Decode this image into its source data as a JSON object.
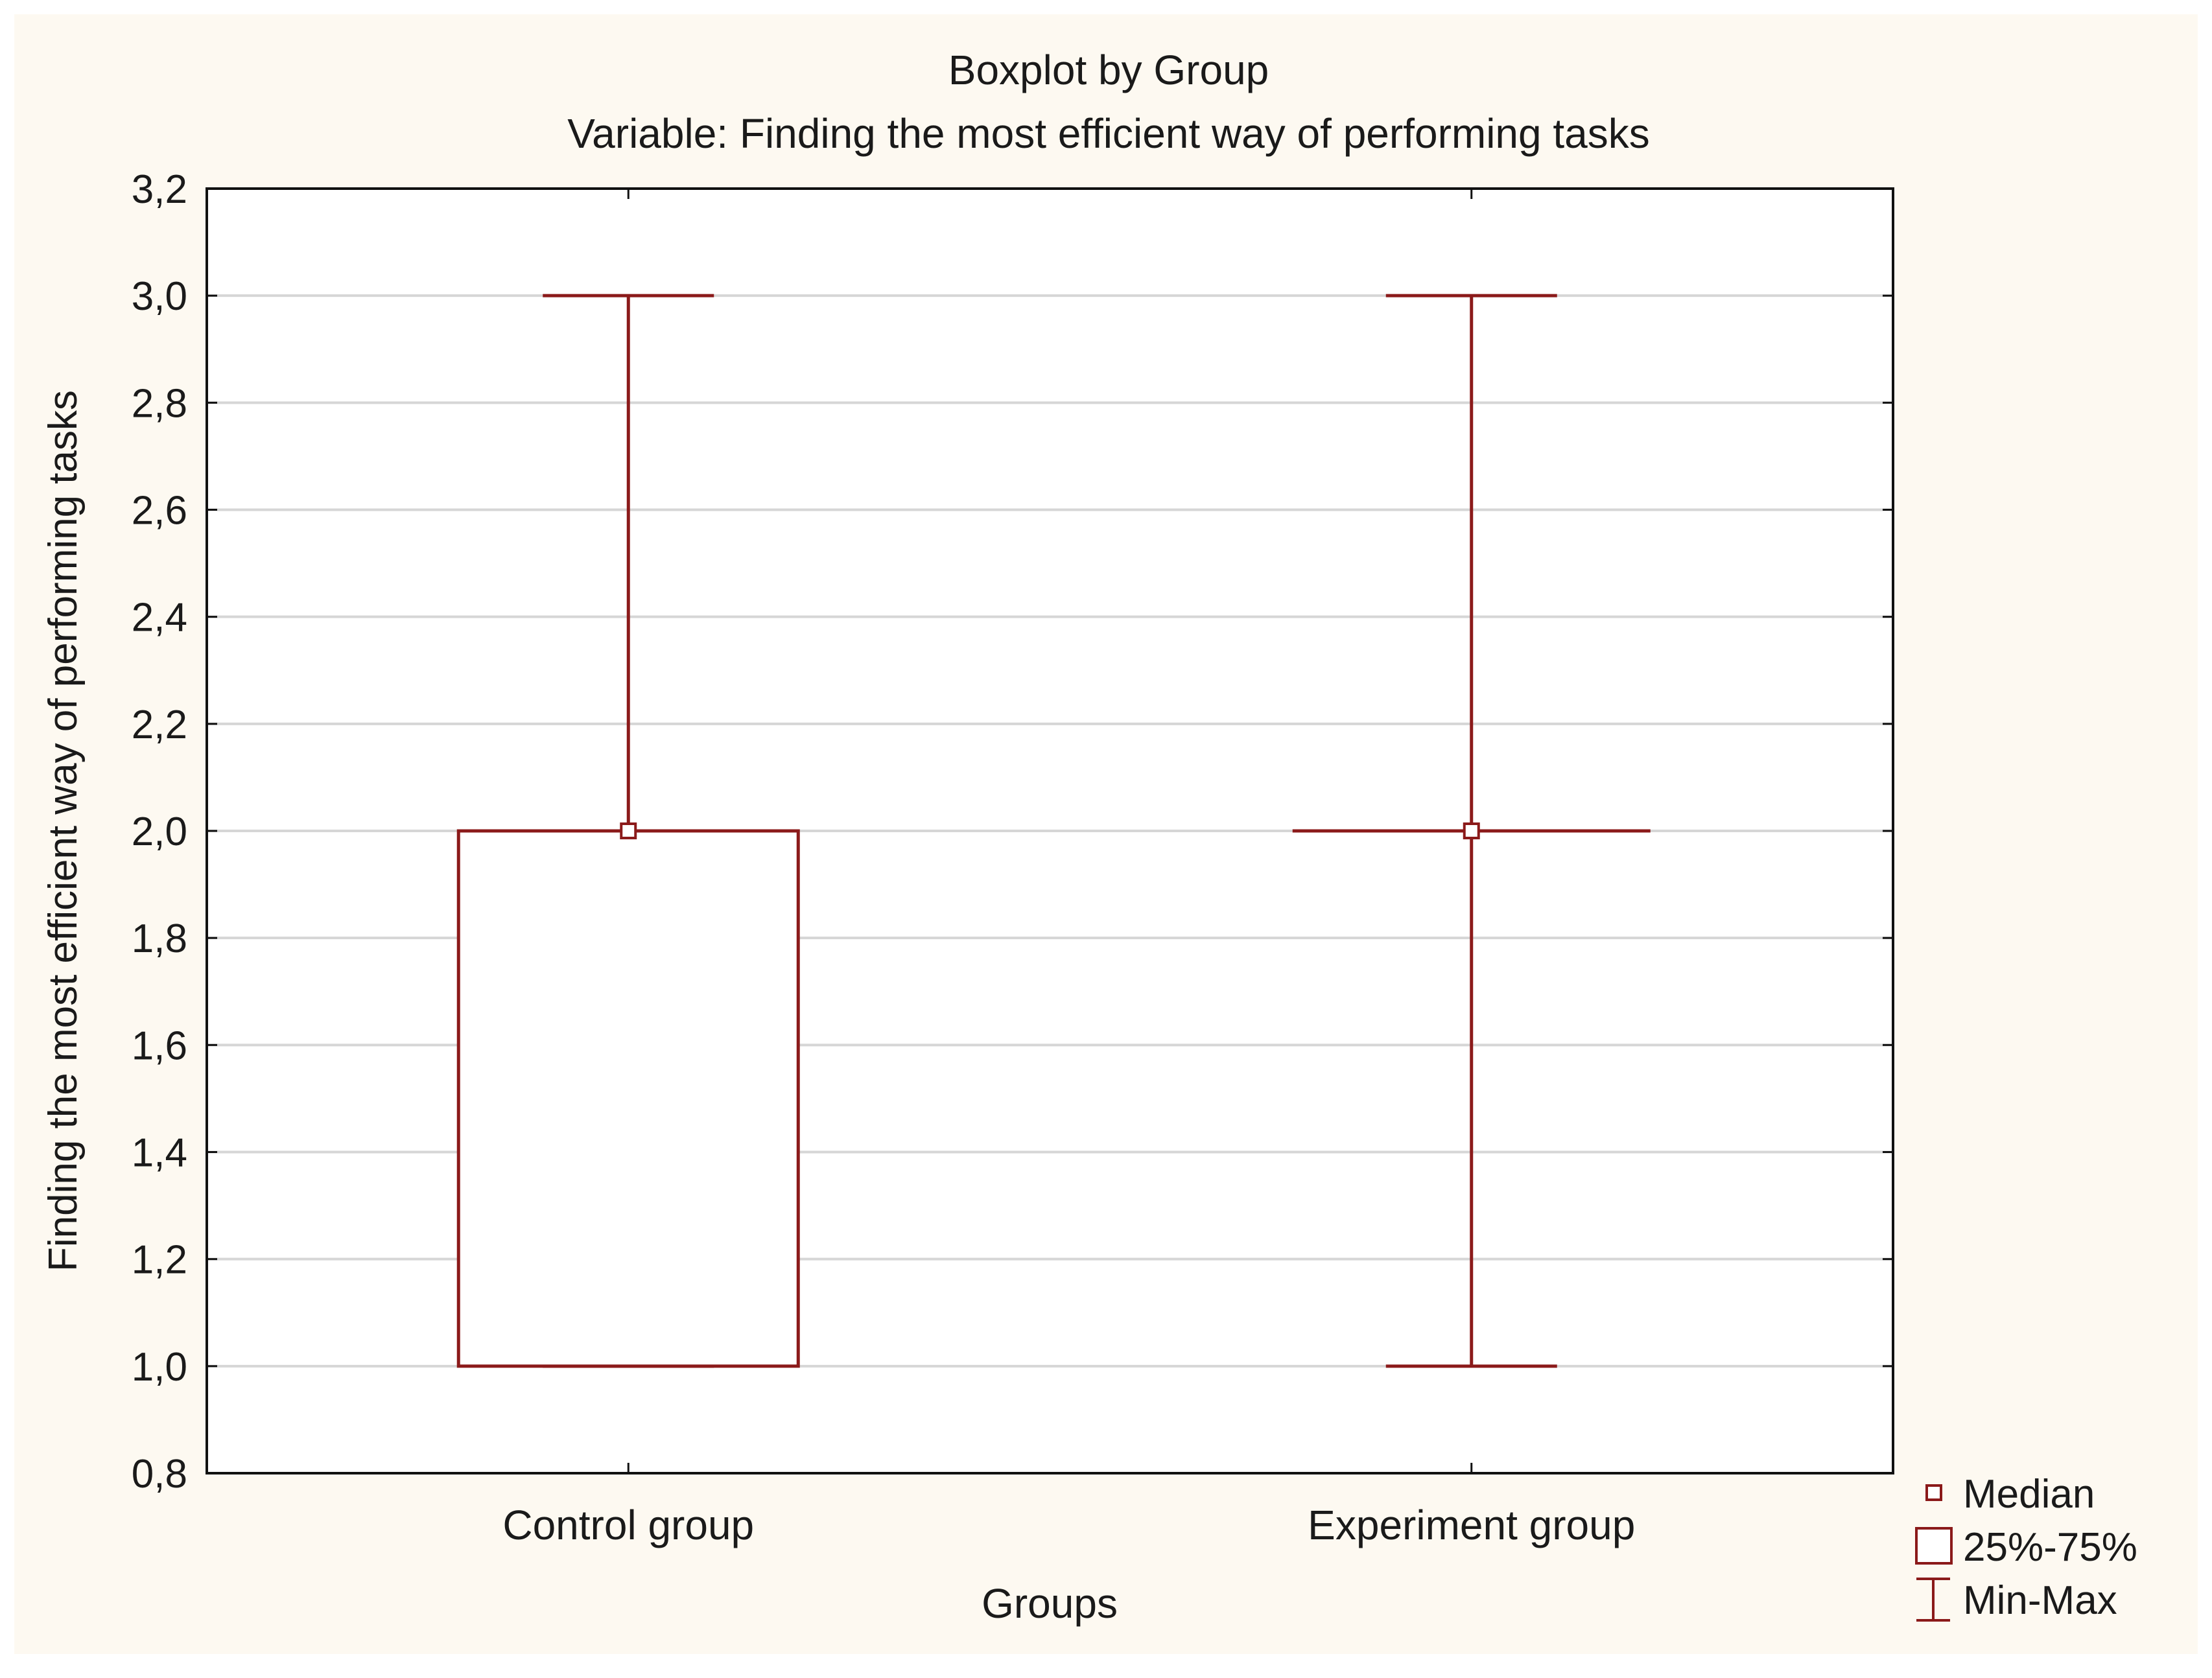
{
  "chart_data": {
    "type": "boxplot",
    "title": "Boxplot by Group",
    "subtitle": "Variable: Finding the most efficient way of performing tasks",
    "xlabel": "Groups",
    "ylabel": "Finding the most efficient way of performing tasks",
    "ylim": [
      0.8,
      3.2
    ],
    "yticks": [
      "0,8",
      "1,0",
      "1,2",
      "1,4",
      "1,6",
      "1,8",
      "2,0",
      "2,2",
      "2,4",
      "2,6",
      "2,8",
      "3,0",
      "3,2"
    ],
    "ytick_values": [
      0.8,
      1.0,
      1.2,
      1.4,
      1.6,
      1.8,
      2.0,
      2.2,
      2.4,
      2.6,
      2.8,
      3.0,
      3.2
    ],
    "grid": true,
    "legend_position": "bottom-right",
    "categories": [
      "Control group",
      "Experiment group"
    ],
    "groups": [
      {
        "name": "Control group",
        "min": 1.0,
        "q1": 1.0,
        "median": 2.0,
        "q3": 2.0,
        "max": 3.0
      },
      {
        "name": "Experiment group",
        "min": 1.0,
        "q1": 2.0,
        "median": 2.0,
        "q3": 2.0,
        "max": 3.0
      }
    ],
    "legend": [
      {
        "symbol": "median",
        "label": "Median"
      },
      {
        "symbol": "box",
        "label": "25%-75%"
      },
      {
        "symbol": "whisker",
        "label": "Min-Max"
      }
    ],
    "colors": {
      "series": "#8b1a1a",
      "background": "#fdf9f1",
      "plot_background": "#ffffff",
      "grid": "#d6d6d6"
    }
  }
}
